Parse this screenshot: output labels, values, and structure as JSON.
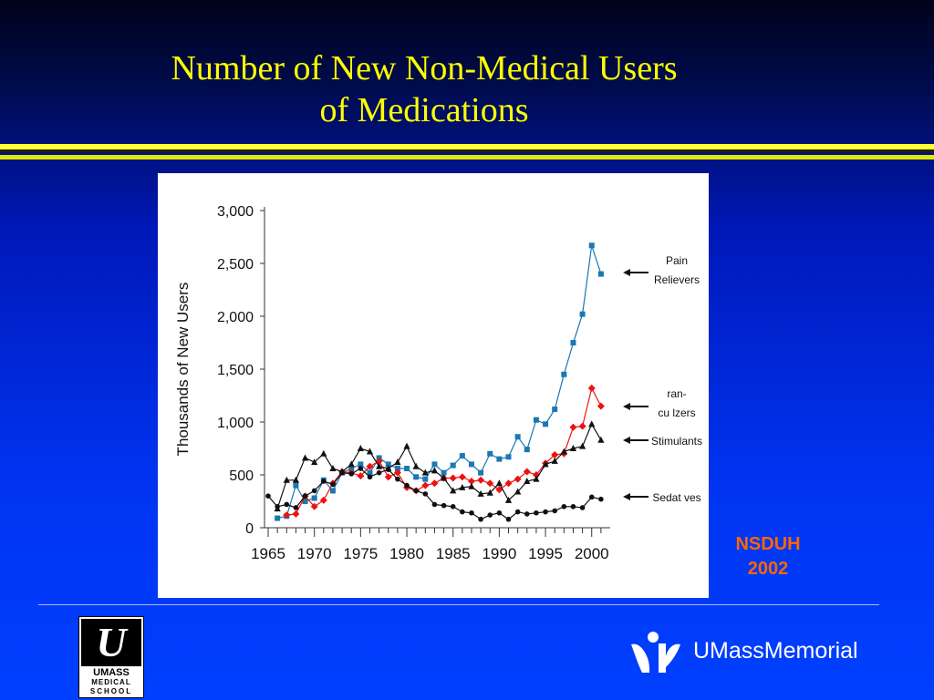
{
  "slide": {
    "title_line1": "Number of New Non-Medical Users",
    "title_line2": "of Medications",
    "source_line1": "NSDUH",
    "source_line2": "2002",
    "logo_text1": "UMASS",
    "logo_text2": "MEDICAL",
    "logo_text3": "SCHOOL",
    "brand_name": "UMassMemorial"
  },
  "colors": {
    "title": "#ffff00",
    "source": "#ff6600",
    "pain": "#1a78b4",
    "tranq": "#ee1111",
    "stim": "#111111",
    "sed": "#111111"
  },
  "chart_data": {
    "type": "line",
    "title": "",
    "xlabel": "",
    "ylabel": "Thousands of New Users",
    "xlim": [
      1965,
      2002
    ],
    "ylim": [
      0,
      3000
    ],
    "yticks": [
      0,
      500,
      1000,
      1500,
      2000,
      2500,
      3000
    ],
    "ytick_labels": [
      "0",
      "500",
      "1,000",
      "1,500",
      "2,000",
      "2,500",
      "3,000"
    ],
    "xticks": [
      1965,
      1970,
      1975,
      1980,
      1985,
      1990,
      1995,
      2000
    ],
    "xtick_labels": [
      "1965",
      "1970",
      "1975",
      "1980",
      "1985",
      "1990",
      "1995",
      "2000"
    ],
    "series": [
      {
        "name": "Pain Relievers",
        "label_lines": [
          "Pain",
          "Relievers"
        ],
        "color_key": "pain",
        "marker": "square",
        "x": [
          1966,
          1967,
          1968,
          1969,
          1970,
          1971,
          1972,
          1973,
          1974,
          1975,
          1976,
          1977,
          1978,
          1979,
          1980,
          1981,
          1982,
          1983,
          1984,
          1985,
          1986,
          1987,
          1988,
          1989,
          1990,
          1991,
          1992,
          1993,
          1994,
          1995,
          1996,
          1997,
          1998,
          1999,
          2000,
          2001
        ],
        "y": [
          90,
          110,
          400,
          250,
          280,
          450,
          350,
          520,
          560,
          600,
          520,
          660,
          600,
          560,
          560,
          480,
          460,
          600,
          520,
          590,
          680,
          600,
          520,
          700,
          650,
          670,
          860,
          740,
          1020,
          980,
          1120,
          1450,
          1750,
          2020,
          2670,
          2400
        ]
      },
      {
        "name": "Tranquilizers",
        "label_lines": [
          "ran-",
          "cu lzers"
        ],
        "color_key": "tranq",
        "marker": "diamond",
        "x": [
          1967,
          1968,
          1969,
          1970,
          1971,
          1972,
          1973,
          1974,
          1975,
          1976,
          1977,
          1978,
          1979,
          1980,
          1981,
          1982,
          1983,
          1984,
          1985,
          1986,
          1987,
          1988,
          1989,
          1990,
          1991,
          1992,
          1993,
          1994,
          1995,
          1996,
          1997,
          1998,
          1999,
          2000,
          2001
        ],
        "y": [
          120,
          130,
          300,
          200,
          260,
          420,
          530,
          520,
          490,
          580,
          630,
          480,
          520,
          380,
          350,
          400,
          420,
          470,
          470,
          480,
          440,
          450,
          420,
          360,
          420,
          460,
          530,
          500,
          610,
          690,
          700,
          950,
          960,
          1320,
          1150
        ]
      },
      {
        "name": "Stimulants",
        "label_lines": [
          "Stimulants"
        ],
        "color_key": "stim",
        "marker": "triangle",
        "x": [
          1966,
          1967,
          1968,
          1969,
          1970,
          1971,
          1972,
          1973,
          1974,
          1975,
          1976,
          1977,
          1978,
          1979,
          1980,
          1981,
          1982,
          1983,
          1984,
          1985,
          1986,
          1987,
          1988,
          1989,
          1990,
          1991,
          1992,
          1993,
          1994,
          1995,
          1996,
          1997,
          1998,
          1999,
          2000,
          2001
        ],
        "y": [
          180,
          450,
          450,
          660,
          620,
          700,
          560,
          530,
          600,
          750,
          720,
          580,
          560,
          620,
          770,
          580,
          520,
          540,
          470,
          350,
          380,
          390,
          320,
          330,
          420,
          260,
          340,
          440,
          460,
          600,
          630,
          720,
          750,
          770,
          980,
          830
        ]
      },
      {
        "name": "Sedatives",
        "label_lines": [
          "Sedat ves"
        ],
        "color_key": "sed",
        "marker": "circle",
        "x": [
          1965,
          1966,
          1967,
          1968,
          1969,
          1970,
          1971,
          1972,
          1973,
          1974,
          1975,
          1976,
          1977,
          1978,
          1979,
          1980,
          1981,
          1982,
          1983,
          1984,
          1985,
          1986,
          1987,
          1988,
          1989,
          1990,
          1991,
          1992,
          1993,
          1994,
          1995,
          1996,
          1997,
          1998,
          1999,
          2000,
          2001
        ],
        "y": [
          300,
          200,
          220,
          190,
          300,
          350,
          440,
          410,
          520,
          510,
          560,
          480,
          520,
          550,
          460,
          400,
          350,
          320,
          220,
          210,
          200,
          150,
          140,
          80,
          120,
          140,
          80,
          150,
          130,
          140,
          150,
          160,
          200,
          200,
          190,
          290,
          270
        ]
      }
    ]
  }
}
